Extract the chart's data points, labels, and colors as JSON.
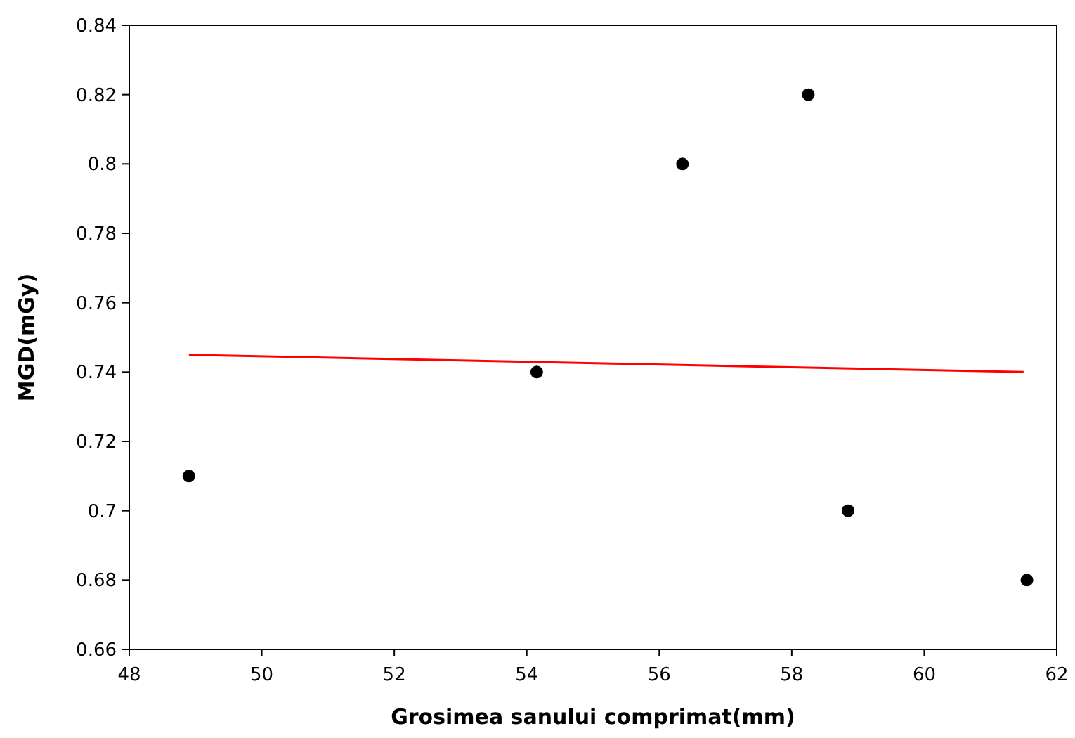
{
  "chart_data": {
    "type": "scatter",
    "xlabel": "Grosimea sanului comprimat(mm)",
    "ylabel": "MGD(mGy)",
    "xlim": [
      48,
      62
    ],
    "xticks": [
      48,
      50,
      52,
      54,
      56,
      58,
      60,
      62
    ],
    "ylim": [
      0.66,
      0.84
    ],
    "yticks": [
      0.66,
      0.68,
      0.7,
      0.72,
      0.74,
      0.76,
      0.78,
      0.8,
      0.82,
      0.84
    ],
    "grid": false,
    "series": [
      {
        "marker": "circle",
        "color": "#000000",
        "x": [
          48.9,
          54.15,
          56.35,
          58.25,
          58.85,
          61.55
        ],
        "values": [
          0.71,
          0.74,
          0.8,
          0.82,
          0.7,
          0.68
        ]
      },
      {
        "type": "line",
        "marker": "none",
        "color": "#ff0000",
        "x": [
          48.9,
          61.5
        ],
        "values": [
          0.745,
          0.74
        ]
      }
    ]
  }
}
